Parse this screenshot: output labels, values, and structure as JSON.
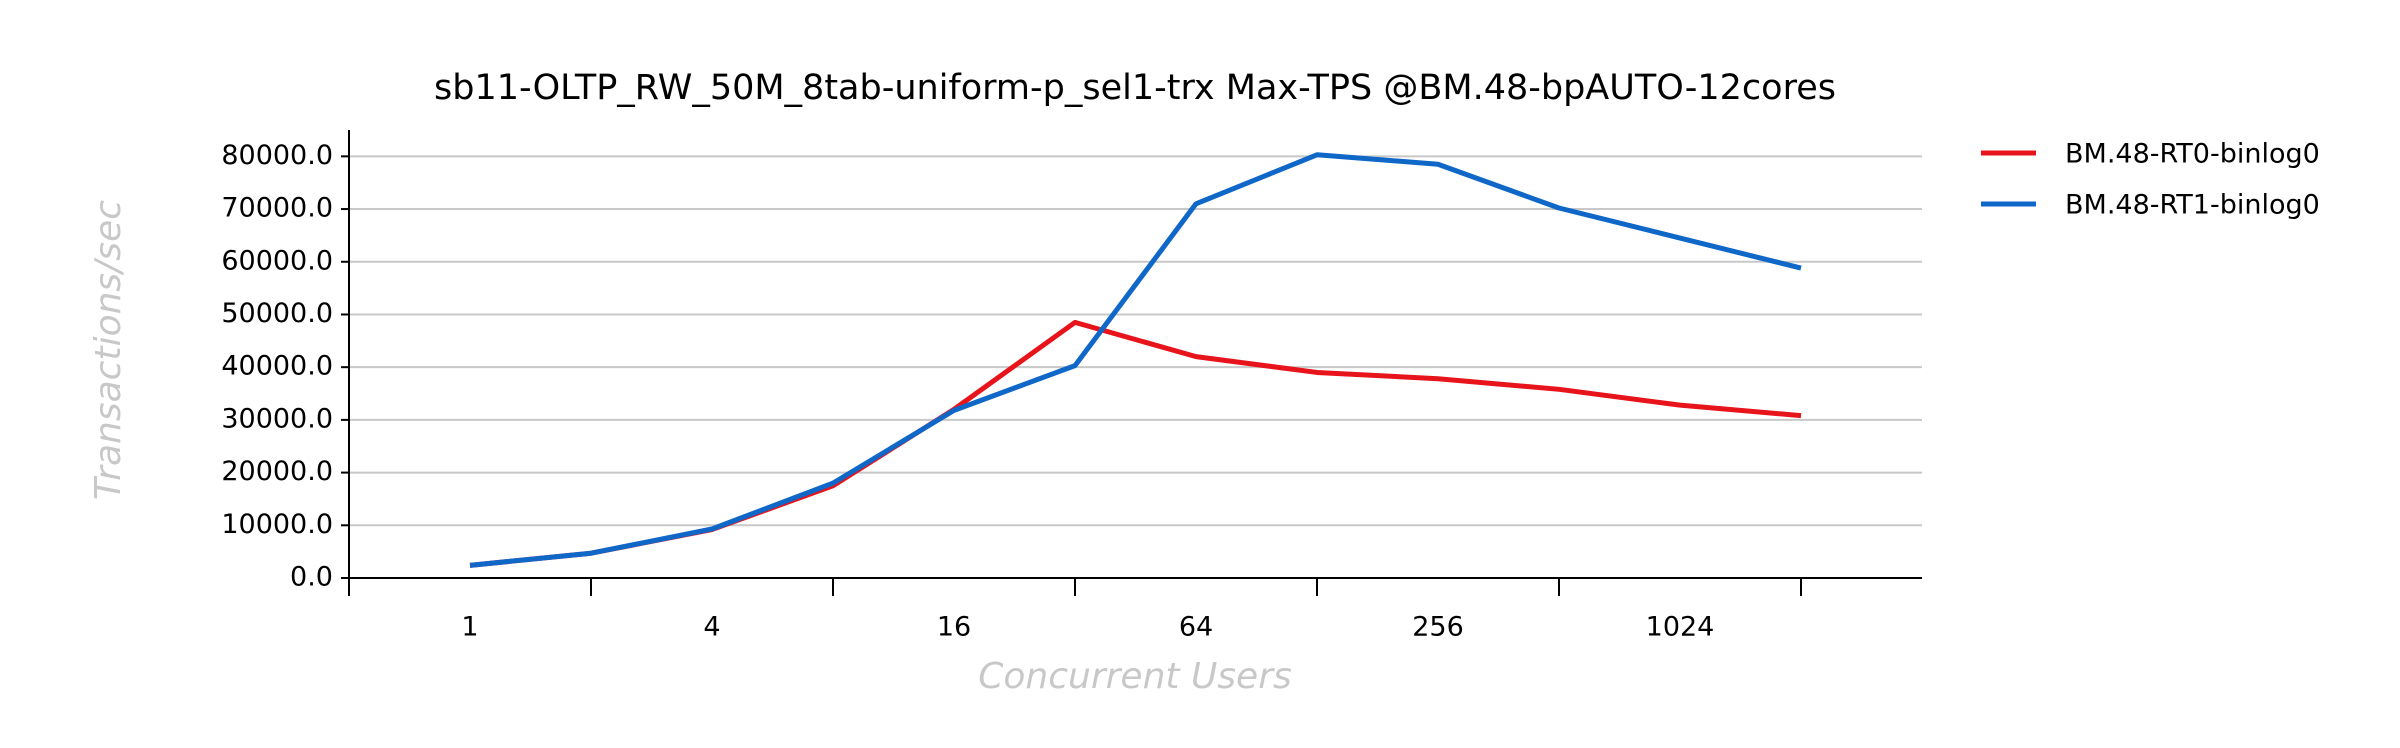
{
  "chart_data": {
    "type": "line",
    "title": "sb11-OLTP_RW_50M_8tab-uniform-p_sel1-trx Max-TPS @BM.48-bpAUTO-12cores",
    "x_label": "Concurrent Users",
    "y_label": "Transactions/sec",
    "categories": [
      "1",
      null,
      "4",
      null,
      "16",
      null,
      "64",
      null,
      "256",
      null,
      "1024",
      null
    ],
    "series": [
      {
        "name": "BM.48-RT0-binlog0",
        "color": "#e8141c",
        "values": [
          2400,
          4700,
          9200,
          17500,
          32000,
          48500,
          42000,
          39000,
          37800,
          35800,
          32800,
          30800
        ]
      },
      {
        "name": "BM.48-RT1-binlog0",
        "color": "#0f67c8",
        "values": [
          2400,
          4700,
          9300,
          18000,
          31800,
          40300,
          71000,
          80300,
          78500,
          70200,
          64500,
          58800
        ]
      }
    ],
    "ylim": [
      0,
      85000
    ],
    "yticks": [
      {
        "value": 0,
        "label": "0.0"
      },
      {
        "value": 10000,
        "label": "10000.0"
      },
      {
        "value": 20000,
        "label": "20000.0"
      },
      {
        "value": 30000,
        "label": "30000.0"
      },
      {
        "value": 40000,
        "label": "40000.0"
      },
      {
        "value": 50000,
        "label": "50000.0"
      },
      {
        "value": 60000,
        "label": "60000.0"
      },
      {
        "value": 70000,
        "label": "70000.0"
      },
      {
        "value": 80000,
        "label": "80000.0"
      }
    ],
    "grid": true,
    "legend": "right"
  }
}
